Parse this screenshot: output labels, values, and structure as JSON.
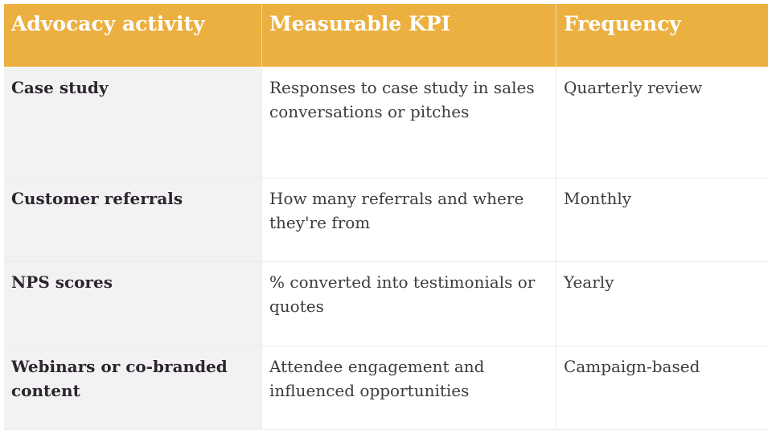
{
  "table": {
    "headers": [
      "Advocacy activity",
      "Measurable KPI",
      "Frequency"
    ],
    "rows": [
      {
        "activity": "Case study",
        "kpi": "Responses to case study in sales conversations or pitches",
        "frequency": "Quarterly review"
      },
      {
        "activity": "Customer referrals",
        "kpi": "How many referrals and where they're from",
        "frequency": "Monthly"
      },
      {
        "activity": "NPS scores",
        "kpi": "% converted into testimonials or quotes",
        "frequency": "Yearly"
      },
      {
        "activity": "Webinars or co-branded content",
        "kpi": "Attendee engagement and influenced opportunities",
        "frequency": "Campaign-based"
      }
    ]
  },
  "colors": {
    "header_background": "#ebb040",
    "header_text": "#ffffff",
    "first_column_background": "#f2f2f2",
    "body_text": "#3f3a3f"
  }
}
